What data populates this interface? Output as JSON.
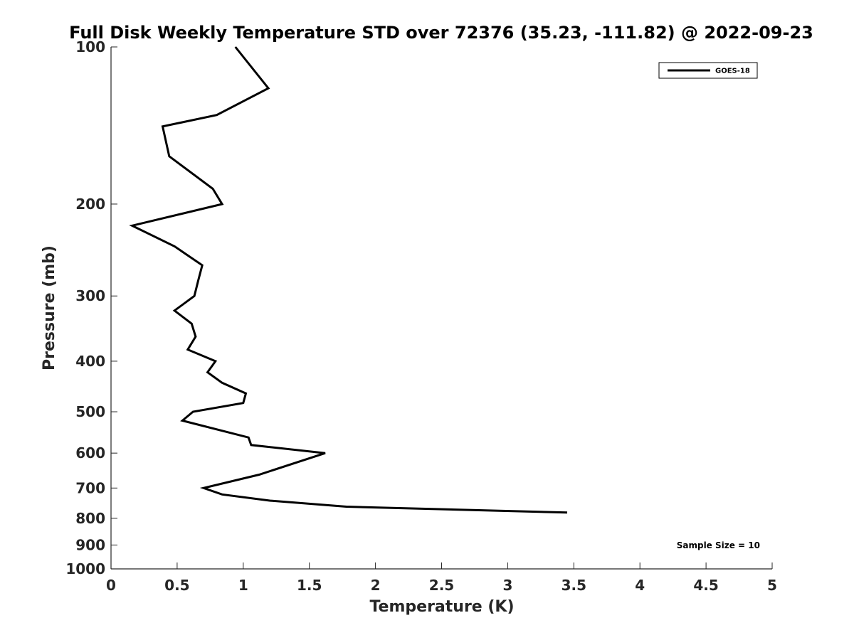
{
  "chart_data": {
    "type": "line",
    "title": "Full Disk Weekly Temperature STD over 72376 (35.23, -111.82) @ 2022-09-23",
    "xlabel": "Temperature (K)",
    "ylabel": "Pressure (mb)",
    "xlim": [
      0,
      5
    ],
    "ylim": [
      100,
      1000
    ],
    "y_scale": "log",
    "y_reversed": true,
    "x_ticks": [
      "0",
      "0.5",
      "1",
      "1.5",
      "2",
      "2.5",
      "3",
      "3.5",
      "4",
      "4.5",
      "5"
    ],
    "y_ticks": [
      "100",
      "200",
      "300",
      "400",
      "500",
      "600",
      "700",
      "800",
      "900",
      "1000"
    ],
    "grid": false,
    "legend_placement": "top-right",
    "series": [
      {
        "name": "GOES-18",
        "color": "#000000",
        "points": [
          {
            "x": 0.94,
            "p": 100
          },
          {
            "x": 1.19,
            "p": 120
          },
          {
            "x": 0.8,
            "p": 135
          },
          {
            "x": 0.39,
            "p": 142
          },
          {
            "x": 0.44,
            "p": 162
          },
          {
            "x": 0.77,
            "p": 187
          },
          {
            "x": 0.84,
            "p": 200
          },
          {
            "x": 0.16,
            "p": 220
          },
          {
            "x": 0.48,
            "p": 241
          },
          {
            "x": 0.69,
            "p": 262
          },
          {
            "x": 0.66,
            "p": 280
          },
          {
            "x": 0.63,
            "p": 300
          },
          {
            "x": 0.48,
            "p": 320
          },
          {
            "x": 0.61,
            "p": 339
          },
          {
            "x": 0.64,
            "p": 359
          },
          {
            "x": 0.58,
            "p": 380
          },
          {
            "x": 0.79,
            "p": 400
          },
          {
            "x": 0.73,
            "p": 420
          },
          {
            "x": 0.84,
            "p": 440
          },
          {
            "x": 1.02,
            "p": 461
          },
          {
            "x": 1.0,
            "p": 481
          },
          {
            "x": 0.62,
            "p": 500
          },
          {
            "x": 0.54,
            "p": 520
          },
          {
            "x": 1.04,
            "p": 560
          },
          {
            "x": 1.06,
            "p": 579
          },
          {
            "x": 1.62,
            "p": 600
          },
          {
            "x": 1.12,
            "p": 660
          },
          {
            "x": 0.7,
            "p": 700
          },
          {
            "x": 0.84,
            "p": 720
          },
          {
            "x": 1.2,
            "p": 740
          },
          {
            "x": 1.78,
            "p": 760
          },
          {
            "x": 3.45,
            "p": 780
          }
        ]
      }
    ],
    "annotation": "Sample Size = 10"
  }
}
